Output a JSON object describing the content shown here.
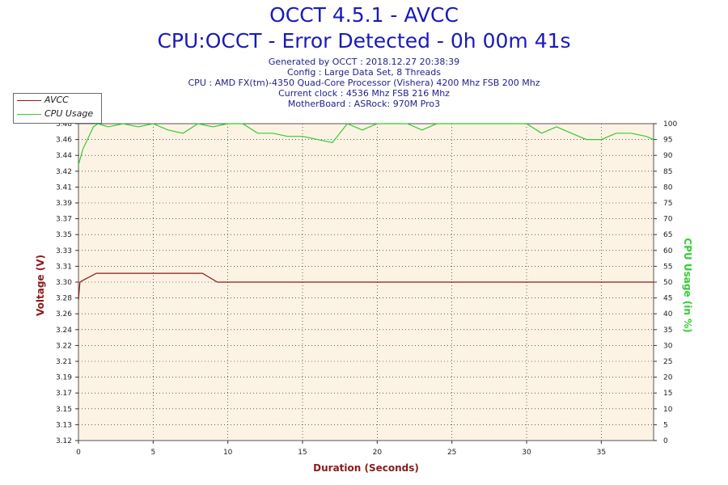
{
  "header": {
    "title": "OCCT 4.5.1 - AVCC",
    "subtitle": "CPU:OCCT - Error Detected - 0h 00m 41s",
    "info_lines": [
      "Generated by OCCT : 2018.12.27 20:38:39",
      "Config : Large Data Set, 8 Threads",
      "CPU : AMD FX(tm)-4350 Quad-Core Processor (Vishera) 4200 Mhz FSB 200 Mhz",
      "Current clock : 4536 Mhz FSB 216 Mhz",
      "MotherBoard : ASRock: 970M Pro3"
    ]
  },
  "legend": [
    {
      "label": "AVCC",
      "color": "#8b1a1a"
    },
    {
      "label": "CPU Usage",
      "color": "#33cc33"
    }
  ],
  "colors": {
    "plot_background": "#fdf3e4",
    "grid": "#000000",
    "voltage_axis": "#8b1a1a",
    "usage_axis": "#33cc33",
    "x_axis_title": "#8b1a1a"
  },
  "chart_data": {
    "type": "line",
    "title": "OCCT 4.5.1 - AVCC",
    "xlabel": "Duration (Seconds)",
    "ylabel": "Voltage (V)",
    "y2label": "CPU Usage (in %)",
    "xlim": [
      0,
      38.5
    ],
    "ylim": [
      3.12,
      3.48
    ],
    "y2lim": [
      0,
      100
    ],
    "grid": true,
    "legend_position": "top-left",
    "x_ticks": [
      0,
      5,
      10,
      15,
      20,
      25,
      30,
      35
    ],
    "y_ticks": [
      "3.12",
      "3.13",
      "3.15",
      "3.17",
      "3.19",
      "3.21",
      "3.22",
      "3.24",
      "3.26",
      "3.28",
      "3.30",
      "3.31",
      "3.33",
      "3.35",
      "3.37",
      "3.39",
      "3.41",
      "3.42",
      "3.44",
      "3.46",
      "3.48"
    ],
    "y2_ticks": [
      0,
      5,
      10,
      15,
      20,
      25,
      30,
      35,
      40,
      45,
      50,
      55,
      60,
      65,
      70,
      75,
      80,
      85,
      90,
      95,
      100
    ],
    "series": [
      {
        "name": "AVCC",
        "axis": "left",
        "color": "#8b1a1a",
        "x": [
          0,
          0.1,
          0.3,
          1.2,
          8.3,
          9.3,
          38.5
        ],
        "y": [
          3.28,
          3.3,
          3.302,
          3.31,
          3.31,
          3.3,
          3.3
        ]
      },
      {
        "name": "CPU Usage",
        "axis": "right",
        "color": "#33cc33",
        "x": [
          0,
          0.3,
          1.0,
          1.3,
          2,
          3,
          4,
          5,
          6,
          7,
          8,
          9,
          10,
          11,
          12,
          13,
          14,
          15,
          16,
          17,
          18,
          19,
          20,
          21,
          22,
          23,
          24,
          25,
          26,
          27,
          28,
          29,
          30,
          31,
          32,
          33,
          34,
          35,
          36,
          37,
          38,
          38.5
        ],
        "y": [
          87,
          92,
          99,
          100,
          99,
          100,
          99,
          100,
          98,
          97,
          100,
          99,
          100,
          100,
          97,
          97,
          96,
          96,
          95,
          94,
          100,
          98,
          100,
          100,
          100,
          98,
          100,
          100,
          100,
          100,
          100,
          100,
          100,
          97,
          99,
          97,
          95,
          95,
          97,
          97,
          96,
          95
        ]
      }
    ]
  }
}
